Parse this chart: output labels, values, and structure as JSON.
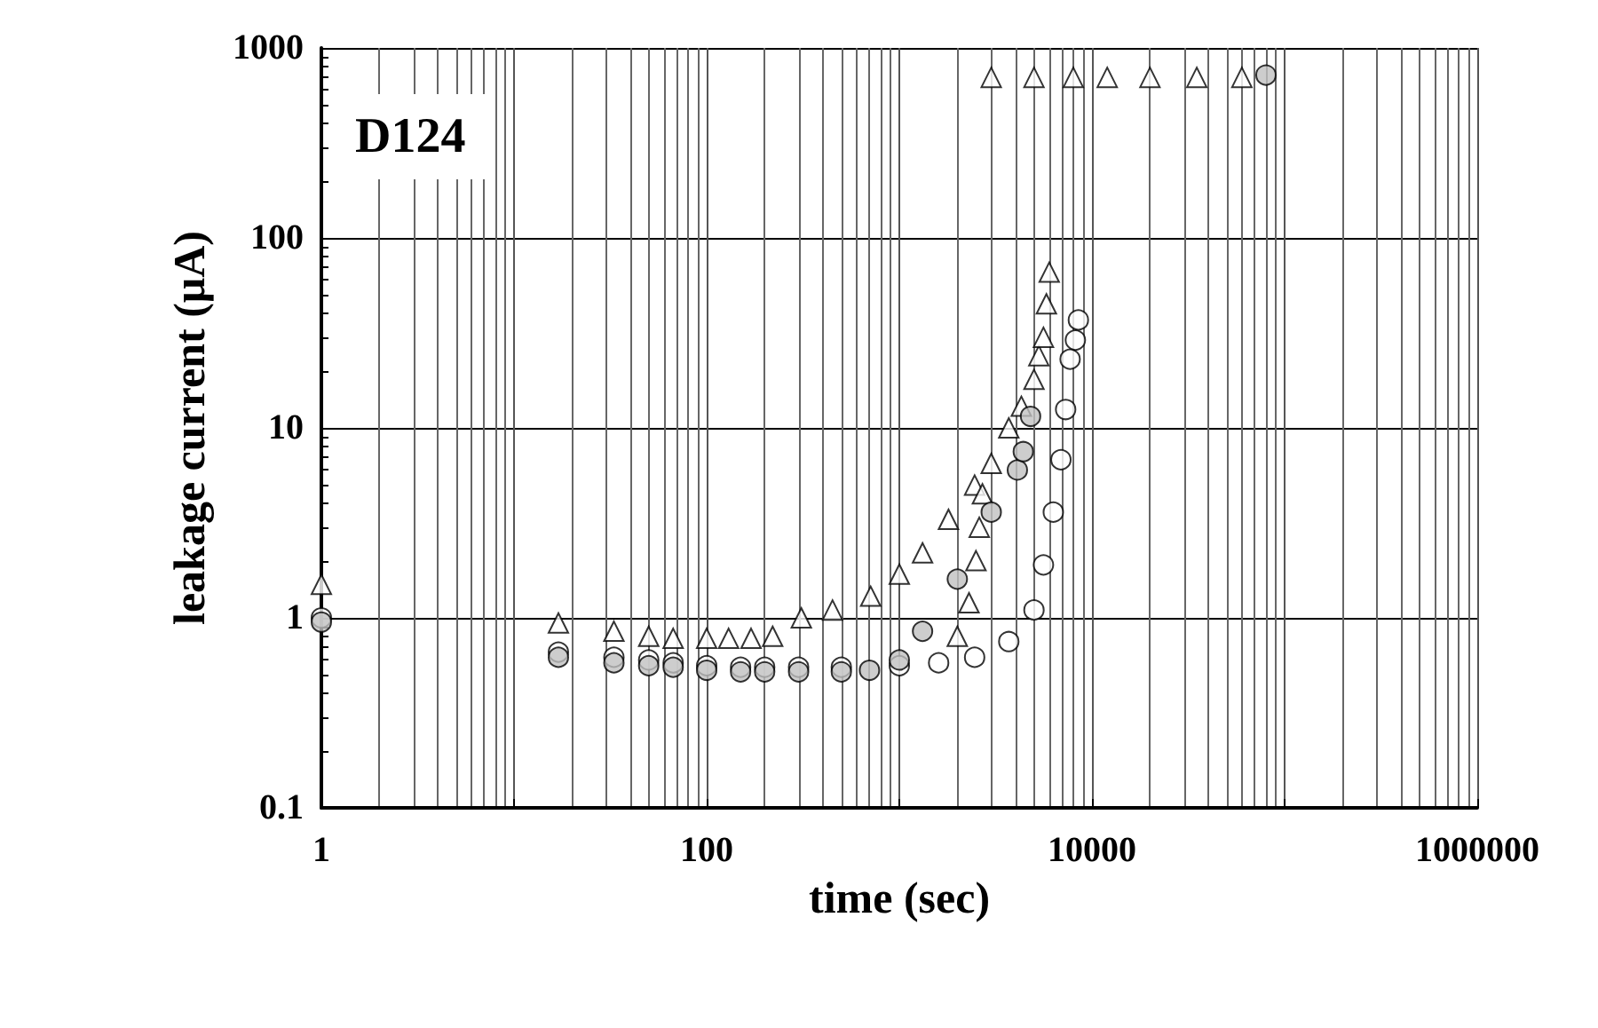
{
  "chart_data": {
    "type": "scatter",
    "xlabel": "time (sec)",
    "ylabel": "leakage current (μA)",
    "annotations": [
      "D124"
    ],
    "log": "xy",
    "grid": true,
    "xlim": [
      1,
      1000000
    ],
    "xticks": [
      1,
      {
        "value": 10,
        "label": null
      },
      100,
      {
        "value": 1000,
        "label": null
      },
      10000,
      {
        "value": 100000,
        "label": null
      },
      1000000
    ],
    "ylim": [
      0.1,
      1000
    ],
    "yticks": [
      0.1,
      1,
      10,
      100,
      1000
    ],
    "series": [
      {
        "marker": "triangle",
        "color": "#ffffff",
        "x": [
          1,
          17,
          33,
          50,
          67,
          100,
          130,
          170,
          220,
          310,
          450,
          710,
          1000,
          1320,
          1800,
          2460,
          3000,
          3700,
          4300,
          5000,
          5300,
          5600,
          5800,
          6000,
          2000,
          2300,
          2500,
          2600,
          2700,
          3000,
          5000,
          8000,
          12000,
          20000,
          35000,
          60000
        ],
        "values": [
          1.5,
          0.94,
          0.85,
          0.8,
          0.78,
          0.78,
          0.78,
          0.78,
          0.8,
          1.0,
          1.1,
          1.3,
          1.7,
          2.2,
          3.3,
          5,
          6.5,
          10,
          13,
          18,
          24,
          30,
          45,
          66,
          0.8,
          1.2,
          2,
          3,
          4.5,
          700,
          700,
          700,
          700,
          700,
          700,
          700
        ]
      },
      {
        "marker": "circle",
        "color": "#ffffff",
        "x": [
          1,
          17,
          33,
          50,
          67,
          100,
          150,
          200,
          300,
          500,
          1000,
          1600,
          2460,
          3700,
          5000,
          5600,
          6300,
          6900,
          7300,
          7700,
          8200,
          8500
        ],
        "values": [
          1.0,
          0.66,
          0.62,
          0.6,
          0.58,
          0.56,
          0.55,
          0.55,
          0.55,
          0.55,
          0.56,
          0.58,
          0.62,
          0.75,
          1.1,
          1.9,
          3.6,
          6.8,
          12.5,
          23,
          29,
          37
        ]
      },
      {
        "marker": "circle",
        "color": "#c0c0c0",
        "x": [
          1,
          17,
          33,
          50,
          67,
          100,
          150,
          200,
          300,
          500,
          700,
          1000,
          1320,
          2000,
          3000,
          4100,
          4400,
          4800,
          80000
        ],
        "values": [
          0.95,
          0.62,
          0.58,
          0.56,
          0.55,
          0.53,
          0.52,
          0.52,
          0.52,
          0.52,
          0.53,
          0.6,
          0.85,
          1.6,
          3.6,
          6,
          7.5,
          11.5,
          720
        ]
      }
    ]
  }
}
